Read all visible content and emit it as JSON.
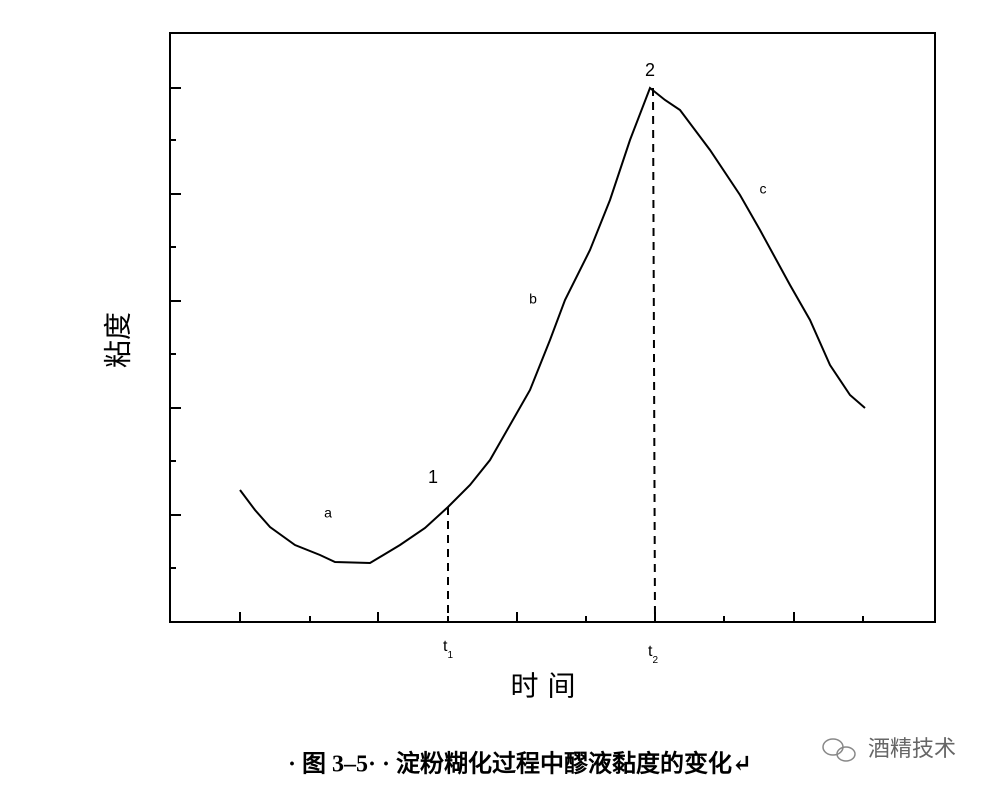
{
  "axes": {
    "y_label": "粘度",
    "x_label": "时 间"
  },
  "annotations": {
    "point_1": "1",
    "point_2": "2",
    "segment_a": "a",
    "segment_b": "b",
    "segment_c": "c",
    "t1": {
      "base": "t",
      "sub": "1"
    },
    "t2": {
      "base": "t",
      "sub": "2"
    }
  },
  "caption": "· 图 3–5· · 淀粉糊化过程中醪液黏度的变化↵",
  "watermark": "酒精技术"
}
